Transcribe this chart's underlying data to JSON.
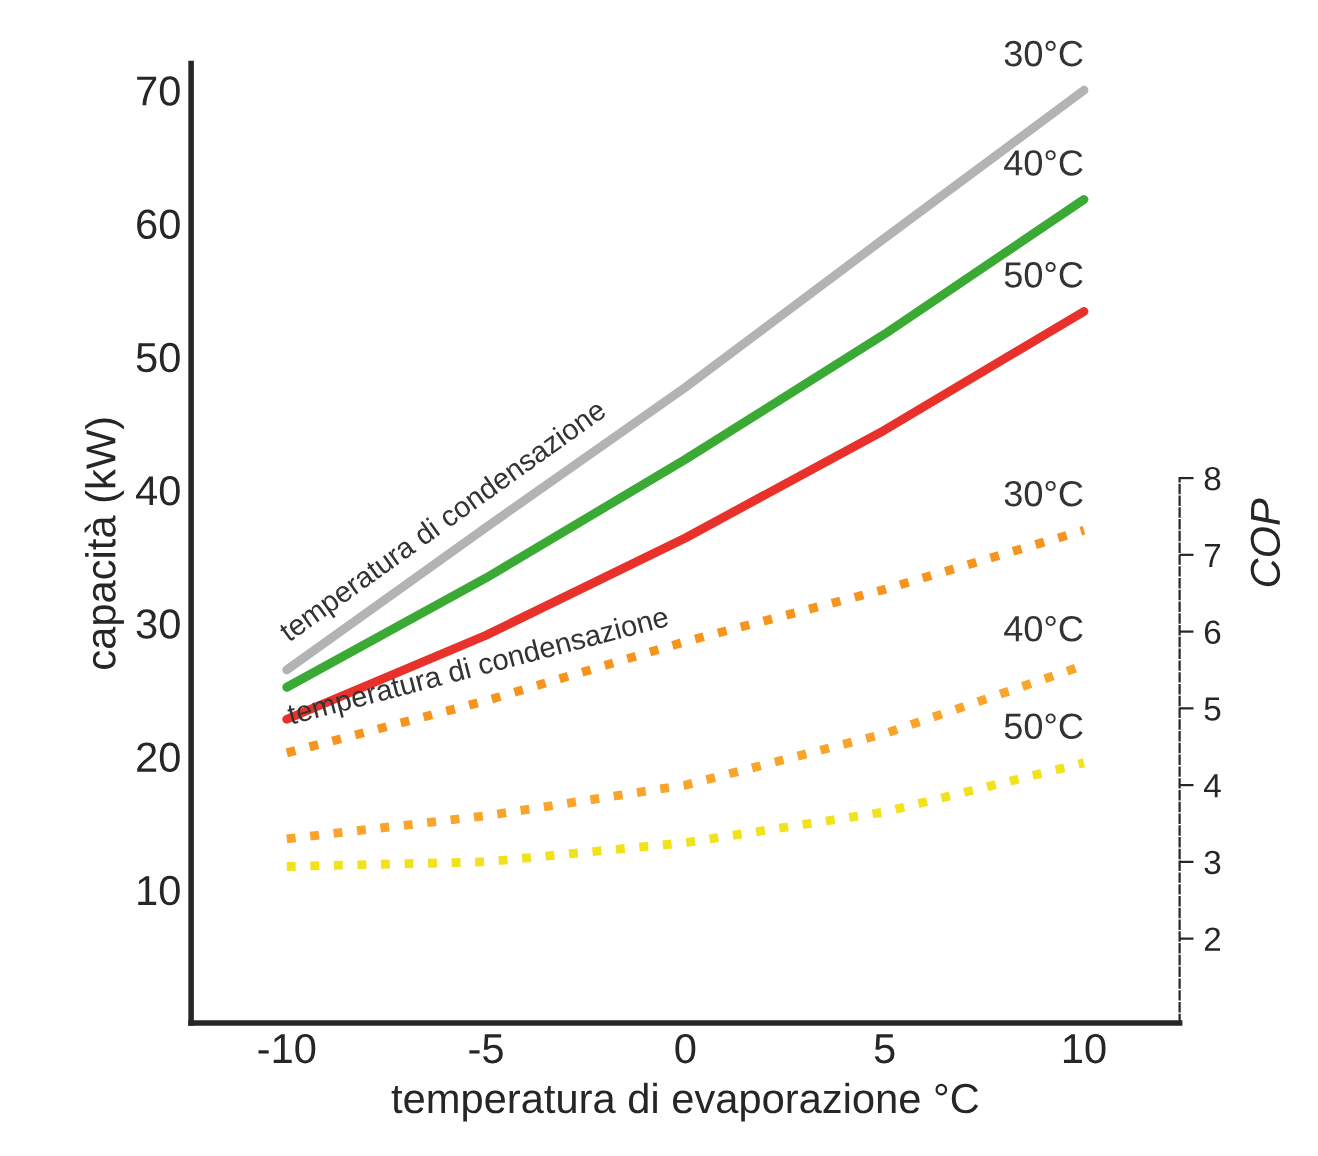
{
  "chart_data": {
    "type": "line",
    "xlabel": "temperatura di evaporazione °C",
    "ylabel": "capacità (kW)",
    "y2label": "COP",
    "x": [
      -10,
      -5,
      0,
      5,
      10
    ],
    "xlim": [
      -12.4,
      12.4
    ],
    "xticks": [
      -10,
      -5,
      0,
      5,
      10
    ],
    "ylim": [
      0,
      72
    ],
    "yticks": [
      10,
      20,
      30,
      40,
      50,
      60,
      70
    ],
    "y2lim": [
      0.9,
      13.4
    ],
    "y2ticks": [
      2,
      3,
      4,
      5,
      6,
      7,
      8
    ],
    "grid": false,
    "legend": false,
    "marker": "none",
    "series": [
      {
        "name": "30°C",
        "color": "#b3b3b3",
        "line_style": "solid",
        "values": [
          26.5,
          37.2,
          47.7,
          58.9,
          70
        ]
      },
      {
        "name": "40°C",
        "color": "#3aaa35",
        "line_style": "solid",
        "values": [
          25.2,
          33.4,
          42.3,
          51.7,
          61.8
        ]
      },
      {
        "name": "50°C",
        "color": "#e8312a",
        "line_style": "solid",
        "values": [
          22.8,
          29.1,
          36.4,
          44.5,
          53.4
        ]
      },
      {
        "name": "30°C",
        "color": "#f7941d",
        "line_style": "dotted",
        "axis": "y2",
        "values": [
          4.42,
          5.1,
          5.87,
          6.55,
          7.32
        ]
      },
      {
        "name": "40°C",
        "color": "#f9a42a",
        "line_style": "dotted",
        "axis": "y2",
        "values": [
          3.3,
          3.6,
          4.0,
          4.67,
          5.56
        ]
      },
      {
        "name": "50°C",
        "color": "#f2e21c",
        "line_style": "dotted",
        "axis": "y2",
        "values": [
          2.94,
          3.0,
          3.25,
          3.65,
          4.29
        ]
      }
    ],
    "annotations": [
      "temperatura di condensazione",
      "temperatura di condensazione"
    ]
  }
}
